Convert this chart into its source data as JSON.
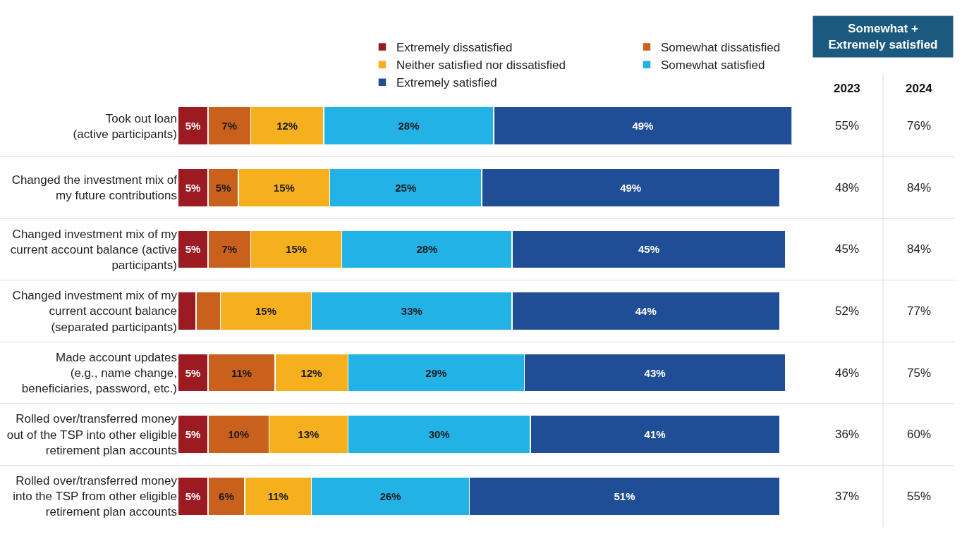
{
  "chart_data": [
    {
      "type": "bar",
      "orientation": "horizontal",
      "stacked": true,
      "legend": "top",
      "categories": [
        "Took out loan\n(active participants)",
        "Changed the investment mix of\nmy future contributions",
        "Changed investment mix of my\ncurrent account balance (active\nparticipants)",
        "Changed investment mix of my\ncurrent account balance\n(separated participants)",
        "Made account updates\n(e.g., name change,\nbeneficiaries, password, etc.)",
        "Rolled over/transferred money\nout of the TSP into other eligible\nretirement plan accounts",
        "Rolled over/transferred money\ninto the TSP from other eligible\nretirement plan accounts"
      ],
      "series": [
        {
          "name": "Extremely dissatisfied",
          "color": "#9c1b22",
          "values": [
            5,
            5,
            5,
            3,
            5,
            5,
            5
          ],
          "value_labels": [
            "5%",
            "5%",
            "5%",
            null,
            "5%",
            "5%",
            "5%"
          ]
        },
        {
          "name": "Somewhat dissatisfied",
          "color": "#c9611c",
          "values": [
            7,
            5,
            7,
            4,
            11,
            10,
            6
          ],
          "value_labels": [
            "7%",
            "5%",
            "7%",
            null,
            "11%",
            "10%",
            "6%"
          ]
        },
        {
          "name": "Neither satisfied nor dissatisfied",
          "color": "#f6b01e",
          "values": [
            12,
            15,
            15,
            15,
            12,
            13,
            11
          ],
          "value_labels": [
            "12%",
            "15%",
            "15%",
            "15%",
            "12%",
            "13%",
            "11%"
          ]
        },
        {
          "name": "Somewhat satisfied",
          "color": "#22b2e6",
          "values": [
            28,
            25,
            28,
            33,
            29,
            30,
            26
          ],
          "value_labels": [
            "28%",
            "25%",
            "28%",
            "33%",
            "29%",
            "30%",
            "26%"
          ]
        },
        {
          "name": "Extremely satisfied",
          "color": "#1f4e96",
          "values": [
            49,
            49,
            45,
            44,
            43,
            41,
            51
          ],
          "value_labels": [
            "49%",
            "49%",
            "45%",
            "44%",
            "43%",
            "41%",
            "51%"
          ]
        }
      ]
    },
    {
      "type": "other",
      "data_labels": true,
      "title": "Somewhat +\nExtremely satisfied",
      "color": "#1b5a7e",
      "categories": [
        "2023",
        "2024"
      ],
      "cell_labels": [
        [
          "55%",
          "76%"
        ],
        [
          "48%",
          "84%"
        ],
        [
          "45%",
          "84%"
        ],
        [
          "52%",
          "77%"
        ],
        [
          "46%",
          "75%"
        ],
        [
          "36%",
          "60%"
        ],
        [
          "37%",
          "55%"
        ]
      ]
    }
  ]
}
